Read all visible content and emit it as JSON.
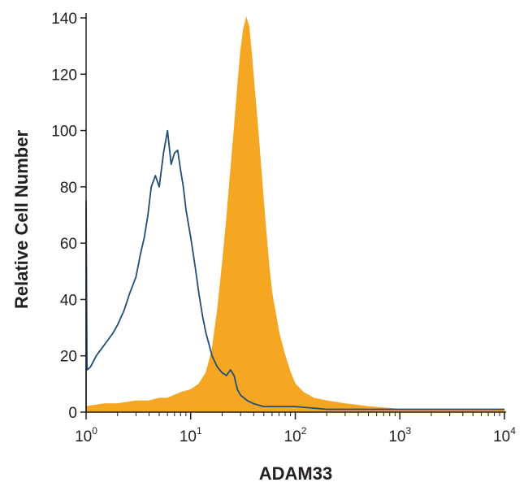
{
  "chart_data": {
    "type": "area",
    "xlabel": "ADAM33",
    "ylabel": "Relative Cell Number",
    "xscale": "log",
    "xlim": [
      1,
      10000
    ],
    "ylim": [
      0,
      140
    ],
    "x_ticks": [
      {
        "base": "10",
        "exp": "0",
        "value": 1
      },
      {
        "base": "10",
        "exp": "1",
        "value": 10
      },
      {
        "base": "10",
        "exp": "2",
        "value": 100
      },
      {
        "base": "10",
        "exp": "3",
        "value": 1000
      },
      {
        "base": "10",
        "exp": "4",
        "value": 10000
      }
    ],
    "y_ticks": [
      "0",
      "20",
      "40",
      "60",
      "80",
      "100",
      "120",
      "140"
    ],
    "grid": false,
    "legend": "none",
    "series": [
      {
        "style": "filled",
        "color": "#f5a623",
        "x": [
          1.0,
          1.5,
          2.0,
          3.0,
          4.0,
          5.0,
          6.0,
          7.0,
          8.0,
          10.0,
          12.0,
          14.0,
          16.0,
          18.0,
          20.0,
          22.0,
          24.0,
          26.0,
          28.0,
          30.0,
          32.0,
          34.0,
          36.0,
          38.0,
          40.0,
          44.0,
          48.0,
          52.0,
          56.0,
          60.0,
          70.0,
          80.0,
          90.0,
          100.0,
          120.0,
          150.0,
          200.0,
          300.0,
          500.0,
          1000.0,
          2000.0,
          5000.0,
          10000.0
        ],
        "values": [
          2,
          3,
          3,
          4,
          4,
          5,
          5,
          6,
          7,
          8,
          10,
          14,
          22,
          36,
          52,
          68,
          85,
          100,
          115,
          128,
          136,
          140,
          137,
          128,
          118,
          100,
          82,
          66,
          52,
          42,
          28,
          20,
          14,
          10,
          7,
          5,
          4,
          3,
          2,
          1,
          1,
          1,
          1
        ]
      },
      {
        "style": "outline",
        "color": "#1f4e79",
        "x": [
          1.0,
          1.02,
          1.1,
          1.25,
          1.5,
          1.8,
          2.0,
          2.3,
          2.6,
          3.0,
          3.3,
          3.6,
          3.9,
          4.2,
          4.6,
          5.0,
          5.5,
          6.0,
          6.5,
          7.0,
          7.5,
          8.0,
          8.5,
          9.0,
          10.0,
          11.0,
          12.0,
          13.0,
          14.0,
          15.0,
          16.0,
          18.0,
          20.0,
          22.0,
          24.0,
          26.0,
          28.0,
          30.0,
          35.0,
          40.0,
          50.0,
          70.0,
          100.0,
          200.0,
          500.0,
          1000.0,
          5000.0,
          10000.0
        ],
        "values": [
          75,
          15,
          16,
          20,
          24,
          28,
          31,
          36,
          42,
          48,
          56,
          62,
          70,
          80,
          84,
          80,
          92,
          100,
          88,
          92,
          93,
          86,
          80,
          72,
          62,
          52,
          42,
          34,
          28,
          24,
          20,
          16,
          14,
          13,
          15,
          13,
          8,
          6,
          4,
          3,
          2,
          2,
          2,
          1,
          1,
          1,
          1,
          1
        ]
      }
    ]
  }
}
